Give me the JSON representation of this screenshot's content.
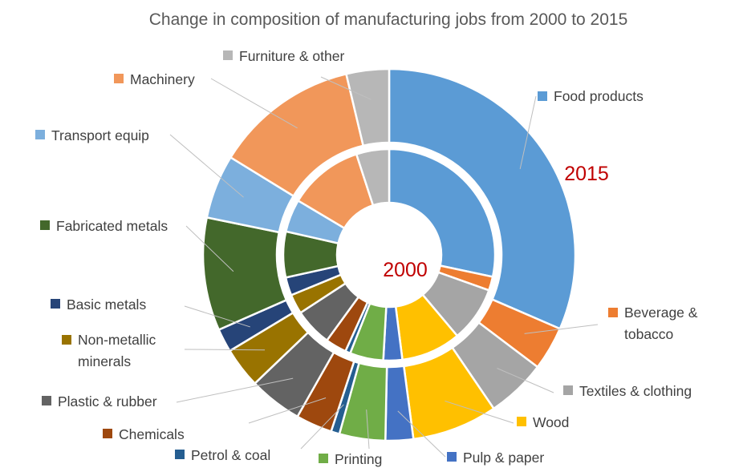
{
  "chart_data": {
    "type": "donut",
    "title": "Change in composition of manufacturing jobs from 2000 to 2015",
    "categories": [
      "Food products",
      "Beverage & tobacco",
      "Textiles & clothing",
      "Wood",
      "Pulp & paper",
      "Printing",
      "Petrol & coal",
      "Chemicals",
      "Plastic & rubber",
      "Non-metallic minerals",
      "Basic metals",
      "Fabricated metals",
      "Transport equip",
      "Machinery",
      "Furniture & other"
    ],
    "legend_lines": [
      [
        "Food products"
      ],
      [
        "Beverage &",
        "tobacco"
      ],
      [
        "Textiles & clothing"
      ],
      [
        "Wood"
      ],
      [
        "Pulp & paper"
      ],
      [
        "Printing"
      ],
      [
        "Petrol & coal"
      ],
      [
        "Chemicals"
      ],
      [
        "Plastic & rubber"
      ],
      [
        "Non-metallic",
        "minerals"
      ],
      [
        "Basic metals"
      ],
      [
        "Fabricated metals"
      ],
      [
        "Transport equip"
      ],
      [
        "Machinery"
      ],
      [
        "Furniture & other"
      ]
    ],
    "colors": [
      "#5b9bd5",
      "#ed7d31",
      "#a5a5a5",
      "#ffc000",
      "#4472c4",
      "#70ad47",
      "#255e91",
      "#9e480e",
      "#636363",
      "#997300",
      "#264478",
      "#43682b",
      "#7cafdd",
      "#f1975a",
      "#b7b7b7"
    ],
    "series": [
      {
        "name": "2000",
        "ring": "inner",
        "values": [
          25.5,
          1.9,
          7.6,
          8.2,
          2.6,
          4.6,
          0.7,
          2.9,
          5.2,
          2.7,
          2.5,
          6.3,
          4.5,
          10.3,
          4.5
        ]
      },
      {
        "name": "2015",
        "ring": "outer",
        "values": [
          34.0,
          4.1,
          5.6,
          8.0,
          2.6,
          4.3,
          0.8,
          3.4,
          5.0,
          3.8,
          2.2,
          10.6,
          6.0,
          13.5,
          4.0
        ]
      }
    ]
  }
}
